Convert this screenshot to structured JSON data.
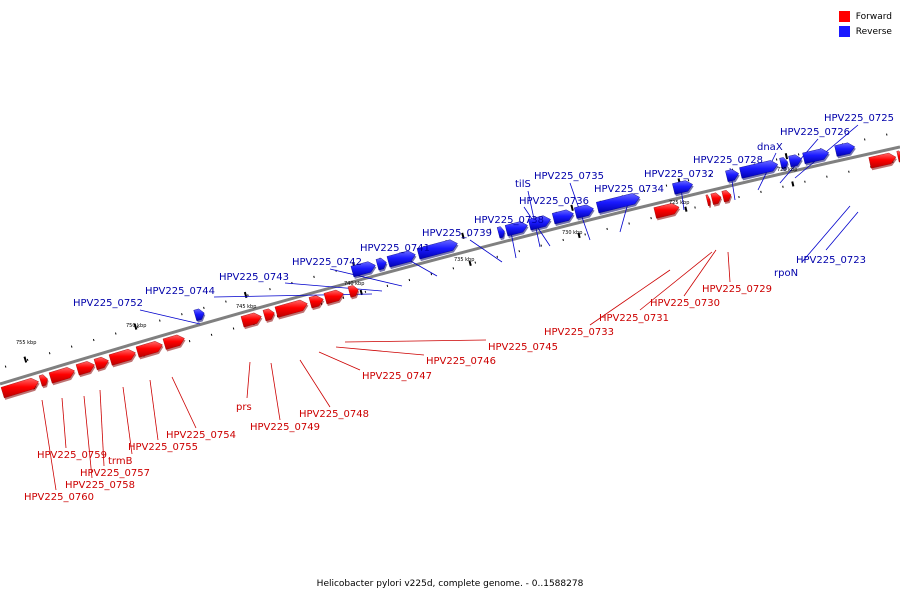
{
  "legend": {
    "forward_label": "Forward",
    "reverse_label": "Reverse",
    "forward_color": "#ff0000",
    "reverse_color": "#1a1aff"
  },
  "caption": "Helicobacter pylori v225d, complete genome. - 0..1588278",
  "colors": {
    "forward_text": "#cc0000",
    "reverse_text": "#0000aa",
    "backbone": "#808080"
  },
  "ticks": [
    "755 kbp",
    "750 kbp",
    "745 kbp",
    "740 kbp",
    "735 kbp",
    "730 kbp",
    "725 kbp",
    "720 kbp"
  ],
  "reverse_gene_labels": [
    "HPV225_0725",
    "HPV225_0726",
    "dnaX",
    "HPV225_0728",
    "HPV225_0732",
    "HPV225_0734",
    "HPV225_0735",
    "tilS",
    "HPV225_0736",
    "HPV225_0738",
    "HPV225_0739",
    "HPV225_0741",
    "HPV225_0742",
    "HPV225_0743",
    "HPV225_0744",
    "HPV225_0752",
    "rpoN",
    "HPV225_0723"
  ],
  "forward_gene_labels": [
    "HPV225_0729",
    "HPV225_0730",
    "HPV225_0731",
    "HPV225_0733",
    "HPV225_0745",
    "HPV225_0746",
    "HPV225_0747",
    "HPV225_0748",
    "HPV225_0749",
    "prs",
    "HPV225_0754",
    "HPV225_0755",
    "trmB",
    "HPV225_0757",
    "HPV225_0758",
    "HPV225_0759",
    "HPV225_0760"
  ]
}
